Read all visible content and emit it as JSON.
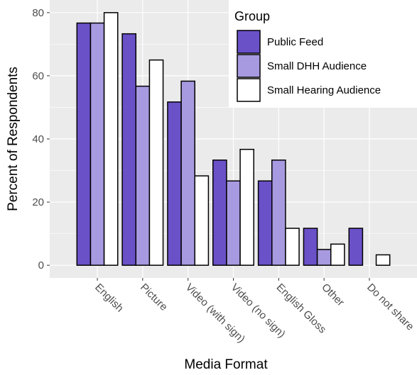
{
  "chart_data": {
    "type": "bar",
    "title": "",
    "xlabel": "Media Format",
    "ylabel": "Percent of Respondents",
    "ylim": [
      -4,
      84
    ],
    "yticks": [
      0,
      20,
      40,
      60,
      80
    ],
    "grid": true,
    "categories": [
      "English",
      "Picture",
      "Video (with sign)",
      "Video (no sign)",
      "English Gloss",
      "Other",
      "Do not share"
    ],
    "legend": {
      "title": "Group",
      "placement": "top-right"
    },
    "series": [
      {
        "name": "Public Feed",
        "color": "#6a51c8",
        "values": [
          76.7,
          73.3,
          51.7,
          33.3,
          26.7,
          11.7,
          11.7
        ]
      },
      {
        "name": "Small DHH Audience",
        "color": "#a89ae0",
        "values": [
          76.7,
          56.7,
          58.3,
          26.7,
          33.3,
          5.0,
          0
        ]
      },
      {
        "name": "Small Hearing Audience",
        "color": "#ffffff",
        "values": [
          80.0,
          65.0,
          28.3,
          36.7,
          11.7,
          6.7,
          3.3
        ]
      }
    ]
  }
}
